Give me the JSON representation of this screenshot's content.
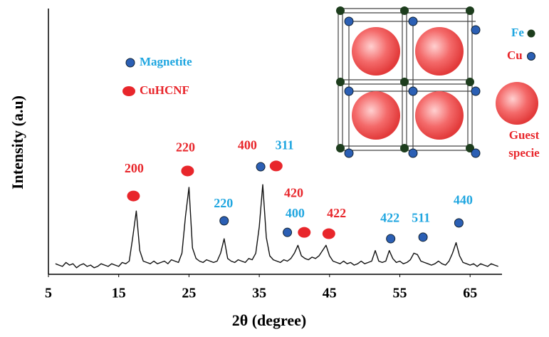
{
  "chart_data": {
    "type": "line",
    "x_label": "2θ (degree)",
    "y_label": "Intensity (a.u)",
    "xlim": [
      5,
      69.5
    ],
    "xticks": [
      5,
      15,
      25,
      35,
      45,
      55,
      65
    ],
    "ylim": [
      0,
      100
    ],
    "series": [
      {
        "color": "#111111",
        "x": [
          6,
          6.5,
          7,
          7.5,
          8,
          8.5,
          9,
          9.5,
          10,
          10.5,
          11,
          11.5,
          12,
          12.5,
          13,
          13.5,
          14,
          14.5,
          15,
          15.5,
          16,
          16.5,
          17,
          17.5,
          18,
          18.5,
          19,
          19.5,
          20,
          20.5,
          21,
          21.5,
          22,
          22.5,
          23,
          23.5,
          24,
          24.5,
          25,
          25.5,
          26,
          26.5,
          27,
          27.5,
          28,
          28.5,
          29,
          29.5,
          30,
          30.5,
          31,
          31.5,
          32,
          32.5,
          33,
          33.5,
          34,
          34.5,
          35,
          35.5,
          36,
          36.5,
          37,
          37.5,
          38,
          38.5,
          39,
          39.5,
          40,
          40.5,
          41,
          41.5,
          42,
          42.5,
          43,
          43.5,
          44,
          44.5,
          45,
          45.5,
          46,
          46.5,
          47,
          47.5,
          48,
          48.5,
          49,
          49.5,
          50,
          50.5,
          51,
          51.5,
          52,
          52.5,
          53,
          53.5,
          54,
          54.5,
          55,
          55.5,
          56,
          56.5,
          57,
          57.5,
          58,
          58.5,
          59,
          59.5,
          60,
          60.5,
          61,
          61.5,
          62,
          62.5,
          63,
          63.5,
          64,
          64.5,
          65,
          65.5,
          66,
          66.5,
          67,
          67.5,
          68,
          68.5,
          69
        ],
        "values": [
          4,
          3.5,
          3,
          4.5,
          3.5,
          4,
          2.5,
          3.5,
          4,
          3,
          3.5,
          2.5,
          3,
          4,
          3.5,
          3,
          4,
          3.5,
          3,
          4.5,
          4,
          5,
          14,
          24,
          9,
          5,
          4.5,
          4,
          5,
          4,
          4.5,
          5,
          4,
          5.5,
          5,
          4.5,
          8,
          22,
          33,
          10,
          6,
          5,
          4.5,
          5.5,
          5,
          4.5,
          5,
          8,
          13.5,
          6,
          5,
          4.5,
          5.5,
          5,
          4.5,
          6,
          5.5,
          8,
          18,
          34,
          14,
          7,
          5.5,
          5,
          4.5,
          5.5,
          5,
          6,
          8,
          11,
          7,
          6,
          5.5,
          6.5,
          6,
          7,
          9,
          11,
          7,
          5,
          4.5,
          4,
          5,
          4,
          4.5,
          3.5,
          4,
          5,
          4,
          4.5,
          5,
          9,
          5,
          4.5,
          5,
          9,
          6,
          4.5,
          5,
          4,
          4.5,
          5.5,
          8,
          7.5,
          5,
          4.5,
          4,
          3.5,
          4,
          5,
          4,
          3.5,
          5,
          8,
          12,
          7,
          4.5,
          4,
          3.5,
          4,
          3,
          4,
          3.5,
          3,
          4,
          3.5,
          3
        ]
      }
    ],
    "legend": [
      {
        "name": "Magnetite",
        "color": "#2b5fb4",
        "text_color": "#1fa6e0"
      },
      {
        "name": "CuHCNF",
        "color": "#e8262b",
        "text_color": "#e8262b"
      }
    ],
    "peak_markers": [
      {
        "x": 17.1,
        "y": 29.7,
        "color": "#e8262b"
      },
      {
        "x": 24.8,
        "y": 39.2,
        "color": "#e8262b"
      },
      {
        "x": 30,
        "y": 20.3,
        "color": "#2b5fb4"
      },
      {
        "x": 35.2,
        "y": 40.8,
        "color": "#2b5fb4"
      },
      {
        "x": 37.4,
        "y": 41.1,
        "color": "#e8262b"
      },
      {
        "x": 39,
        "y": 15.9,
        "color": "#2b5fb4"
      },
      {
        "x": 41.4,
        "y": 15.9,
        "color": "#e8262b"
      },
      {
        "x": 44.9,
        "y": 15.4,
        "color": "#e8262b"
      },
      {
        "x": 53.7,
        "y": 13.5,
        "color": "#2b5fb4"
      },
      {
        "x": 58.3,
        "y": 14.1,
        "color": "#2b5fb4"
      },
      {
        "x": 63.4,
        "y": 19.5,
        "color": "#2b5fb4"
      }
    ],
    "peak_labels": [
      {
        "text": "200",
        "x": 17.2,
        "y": 39.7,
        "color": "#e8262b"
      },
      {
        "text": "220",
        "x": 24.5,
        "y": 47.8,
        "color": "#e8262b"
      },
      {
        "text": "220",
        "x": 29.9,
        "y": 26.5,
        "color": "#1fa6e0"
      },
      {
        "text": "400",
        "x": 33.3,
        "y": 48.6,
        "color": "#e8262b"
      },
      {
        "text": "311",
        "x": 38.6,
        "y": 48.6,
        "color": "#1fa6e0"
      },
      {
        "text": "420",
        "x": 39.9,
        "y": 30.5,
        "color": "#e8262b"
      },
      {
        "text": "400",
        "x": 40.1,
        "y": 22.7,
        "color": "#1fa6e0"
      },
      {
        "text": "422",
        "x": 46,
        "y": 22.7,
        "color": "#e8262b"
      },
      {
        "text": "422",
        "x": 53.6,
        "y": 21,
        "color": "#1fa6e0"
      },
      {
        "text": "511",
        "x": 58,
        "y": 21,
        "color": "#1fa6e0"
      },
      {
        "text": "440",
        "x": 64,
        "y": 27.8,
        "color": "#1fa6e0"
      }
    ],
    "inset_legend": {
      "fe": "Fe",
      "cu": "Cu",
      "guest": [
        "Guest",
        "specie"
      ]
    }
  }
}
